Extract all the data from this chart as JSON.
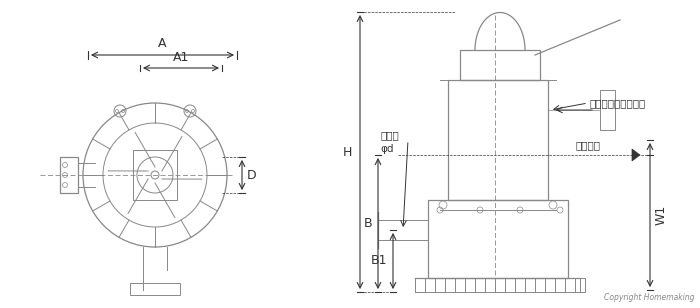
{
  "bg_color": "#ffffff",
  "line_color": "#888888",
  "dark_line": "#555555",
  "text_color": "#333333",
  "annotation_color": "#333333",
  "copyright_text": "Copyright Homemaking",
  "label_A": "A",
  "label_A1": "A1",
  "label_D": "D",
  "label_H": "H",
  "label_B": "B",
  "label_B1": "B1",
  "label_W1": "W1",
  "label_yobi": "呼び径",
  "label_phi": "φd",
  "label_ekimen": "液面リレーユニット",
  "label_shido": "始動水位",
  "fig_width": 7.0,
  "fig_height": 3.08
}
